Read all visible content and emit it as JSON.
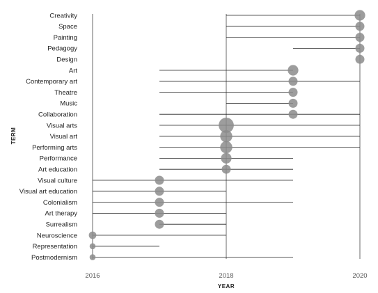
{
  "chart_data": {
    "type": "scatter",
    "xlabel": "YEAR",
    "ylabel": "TERM",
    "xlim": [
      2016,
      2020
    ],
    "x_ticks": [
      "2016",
      "2018",
      "2020"
    ],
    "colors": {
      "bubble": "#8c8c8c",
      "line": "#222222"
    },
    "terms": [
      {
        "term": "Creativity",
        "start": 2018,
        "end": 2020,
        "peak": 2020,
        "weight": 4
      },
      {
        "term": "Space",
        "start": 2018,
        "end": 2020,
        "peak": 2020,
        "weight": 3
      },
      {
        "term": "Painting",
        "start": 2018,
        "end": 2020,
        "peak": 2020,
        "weight": 3
      },
      {
        "term": "Pedagogy",
        "start": 2019,
        "end": 2020,
        "peak": 2020,
        "weight": 3
      },
      {
        "term": "Design",
        "start": 2020,
        "end": 2020,
        "peak": 2020,
        "weight": 3
      },
      {
        "term": "Art",
        "start": 2017,
        "end": 2019,
        "peak": 2019,
        "weight": 4
      },
      {
        "term": "Contemporary art",
        "start": 2017,
        "end": 2020,
        "peak": 2019,
        "weight": 3
      },
      {
        "term": "Theatre",
        "start": 2017,
        "end": 2019,
        "peak": 2019,
        "weight": 3
      },
      {
        "term": "Music",
        "start": 2018,
        "end": 2019,
        "peak": 2019,
        "weight": 3
      },
      {
        "term": "Collaboration",
        "start": 2017,
        "end": 2020,
        "peak": 2019,
        "weight": 3
      },
      {
        "term": "Visual arts",
        "start": 2017,
        "end": 2020,
        "peak": 2018,
        "weight": 7
      },
      {
        "term": "Visual art",
        "start": 2017,
        "end": 2020,
        "peak": 2018,
        "weight": 5
      },
      {
        "term": "Performing arts",
        "start": 2017,
        "end": 2020,
        "peak": 2018,
        "weight": 5
      },
      {
        "term": "Performance",
        "start": 2017,
        "end": 2019,
        "peak": 2018,
        "weight": 4
      },
      {
        "term": "Art education",
        "start": 2017,
        "end": 2019,
        "peak": 2018,
        "weight": 3
      },
      {
        "term": "Visual culture",
        "start": 2016,
        "end": 2019,
        "peak": 2017,
        "weight": 3
      },
      {
        "term": "Visual art education",
        "start": 2016,
        "end": 2018,
        "peak": 2017,
        "weight": 3
      },
      {
        "term": "Colonialism",
        "start": 2016,
        "end": 2019,
        "peak": 2017,
        "weight": 3
      },
      {
        "term": "Art therapy",
        "start": 2016,
        "end": 2018,
        "peak": 2017,
        "weight": 3
      },
      {
        "term": "Surrealism",
        "start": 2017,
        "end": 2018,
        "peak": 2017,
        "weight": 3
      },
      {
        "term": "Neuroscience",
        "start": 2016,
        "end": 2018,
        "peak": 2016,
        "weight": 2
      },
      {
        "term": "Representation",
        "start": 2016,
        "end": 2017,
        "peak": 2016,
        "weight": 1
      },
      {
        "term": "Postmodernism",
        "start": 2016,
        "end": 2019,
        "peak": 2016,
        "weight": 1
      }
    ]
  }
}
